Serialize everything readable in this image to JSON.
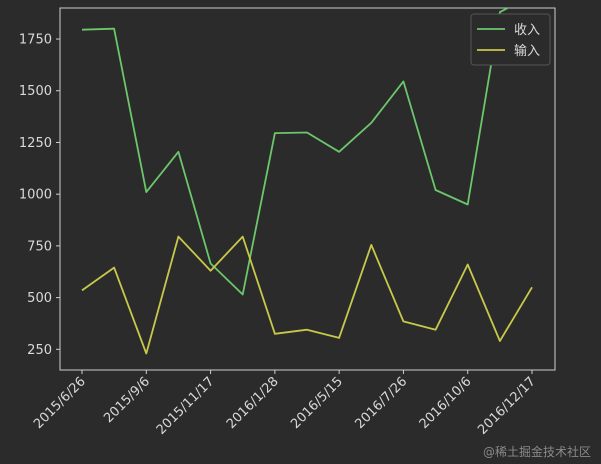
{
  "chart_data": {
    "type": "line",
    "x_tick_labels": [
      "2015/6/26",
      "2015/9/6",
      "2015/11/17",
      "2016/1/28",
      "2016/5/15",
      "2016/7/26",
      "2016/10/6",
      "2016/12/17"
    ],
    "ylim": [
      150,
      1900
    ],
    "y_ticks": [
      250,
      500,
      750,
      1000,
      1250,
      1500,
      1750
    ],
    "grid": false,
    "legend_position": "top-right",
    "series": [
      {
        "name": "收入",
        "color": "#6cc66c",
        "values": [
          1795,
          1800,
          1010,
          1205,
          665,
          515,
          1295,
          1298,
          1205,
          1345,
          1545,
          1020,
          950,
          1880,
          1960
        ]
      },
      {
        "name": "输入",
        "color": "#c8c84a",
        "values": [
          535,
          645,
          230,
          795,
          630,
          795,
          325,
          345,
          305,
          755,
          385,
          345,
          660,
          290,
          550
        ]
      }
    ]
  },
  "watermark": "@稀土掘金技术社区"
}
